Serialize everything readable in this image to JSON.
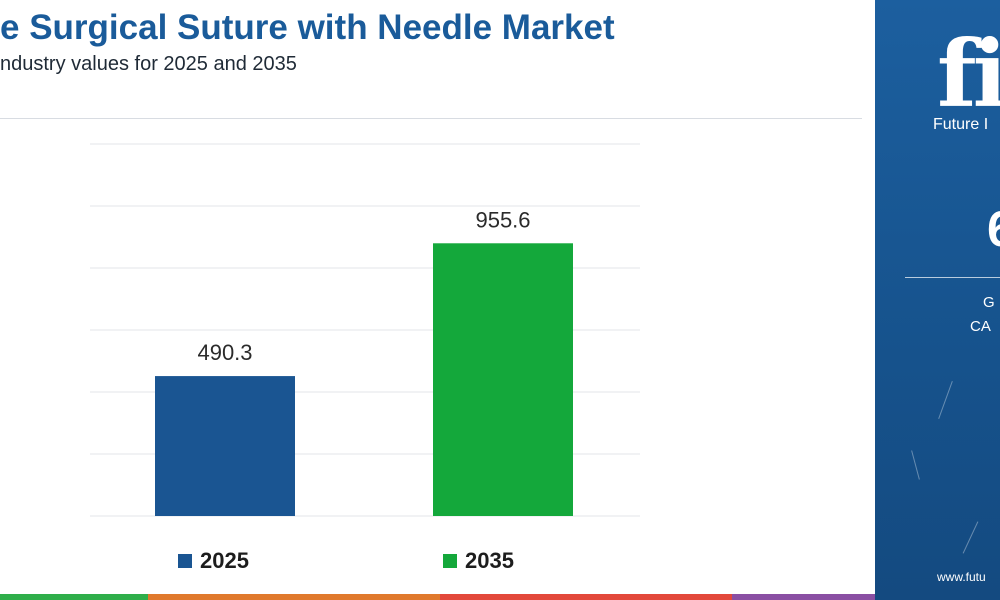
{
  "header": {
    "title": "e Surgical Suture with Needle Market",
    "subtitle": "ndustry values for 2025 and 2035"
  },
  "chart_data": {
    "type": "bar",
    "categories": [
      "2025",
      "2035"
    ],
    "values": [
      490.3,
      955.6
    ],
    "colors": [
      "#1a5592",
      "#14a83b"
    ],
    "data_labels": [
      "490.3",
      "955.6"
    ],
    "legend": [
      "2025",
      "2035"
    ],
    "legend_position": "bottom",
    "grid": true,
    "ylim": [
      0,
      1300
    ]
  },
  "side_panel": {
    "logo_mark": "fi",
    "logo_text": "Future I",
    "cagr_value": "6",
    "label_1": "G",
    "label_2": "CA",
    "url": "www.futu"
  },
  "footer_colors": [
    "#2fae4a",
    "#e0792c",
    "#e3483b",
    "#8a4fa3"
  ]
}
